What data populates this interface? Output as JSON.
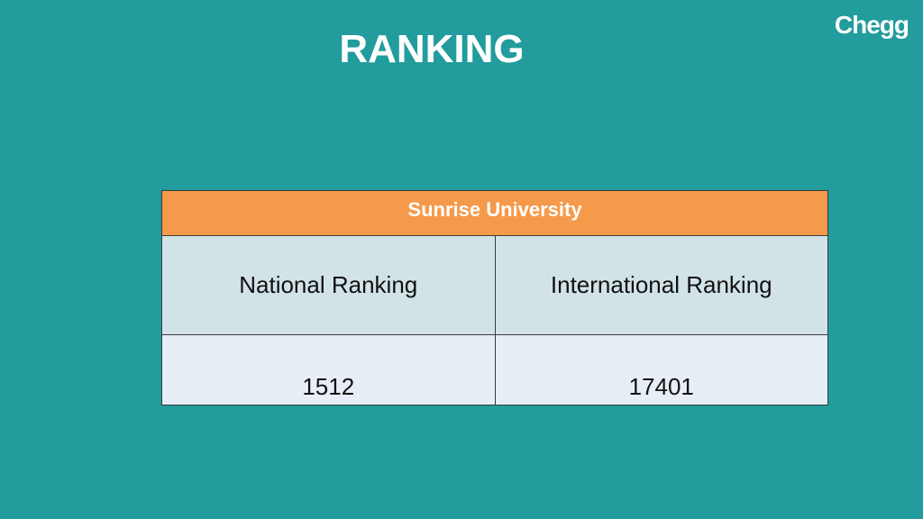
{
  "header": {
    "title": "RANKING",
    "logo": "Chegg"
  },
  "table": {
    "caption": "Sunrise University",
    "columns": [
      "National Ranking",
      "International Ranking"
    ],
    "rows": [
      [
        "1512",
        "17401"
      ]
    ]
  }
}
